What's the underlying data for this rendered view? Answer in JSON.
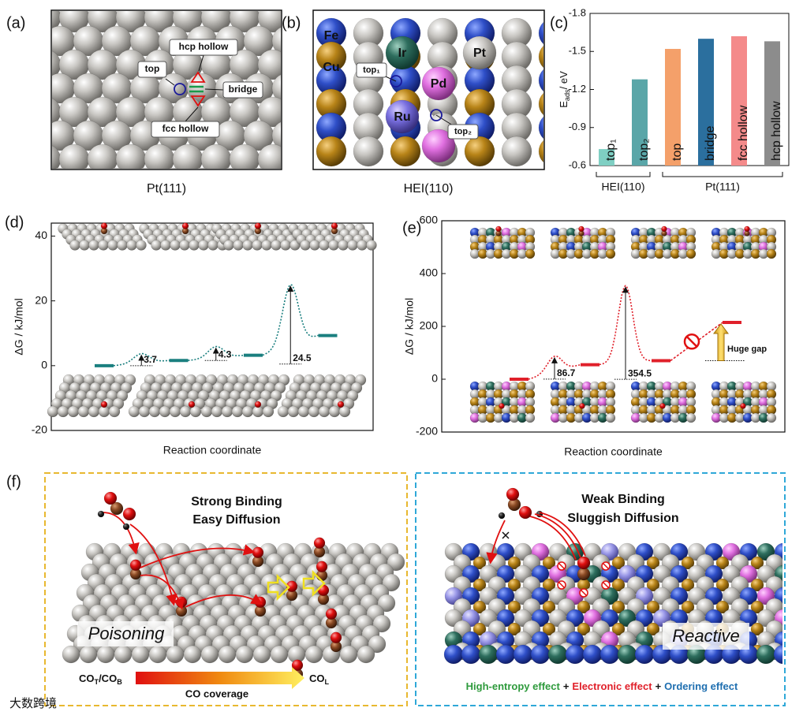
{
  "panel_labels": [
    "(a)",
    "(b)",
    "(c)",
    "(d)",
    "(e)",
    "(f)"
  ],
  "panel_a": {
    "sites": [
      "top",
      "hcp hollow",
      "bridge",
      "fcc hollow"
    ],
    "caption": "Pt(111)"
  },
  "panel_b": {
    "elements": [
      "Fe",
      "Cu",
      "Ir",
      "Pt",
      "Pd",
      "Ru"
    ],
    "sites": [
      "top₁",
      "top₂"
    ],
    "caption": "HEI(110)"
  },
  "chart_data": [
    {
      "type": "bar",
      "categories": [
        "top₁",
        "top₂",
        "top",
        "bridge",
        "fcc hollow",
        "hcp hollow"
      ],
      "values": [
        -0.73,
        -1.28,
        -1.52,
        -1.6,
        -1.62,
        -1.58
      ],
      "colors": [
        "#7fcfc3",
        "#5aa6a8",
        "#f4a06a",
        "#2b6f9e",
        "#f48a8a",
        "#8c8c8c"
      ],
      "ylim": [
        -0.6,
        -1.8
      ],
      "yticks": [
        -1.8,
        -1.5,
        -1.2,
        -0.9,
        -0.6
      ],
      "ylabel": [
        "E",
        "ads",
        "/ eV"
      ],
      "group_labels": [
        "HEI(110)",
        "Pt(111)"
      ]
    },
    {
      "type": "energy-profile",
      "levels": [
        0,
        1.6,
        3.2,
        9.3
      ],
      "peaks": [
        3.7,
        5.9,
        25
      ],
      "barriers": [
        3.7,
        4.3,
        24.5
      ],
      "color": "#1a7f7f",
      "ylim": [
        -20,
        44
      ],
      "yticks": [
        -20,
        0,
        20,
        40
      ],
      "xlabel": "Reaction coordinate",
      "ylabel": "ΔG / kJ/mol"
    },
    {
      "type": "energy-profile",
      "levels": [
        0,
        55,
        70,
        215
      ],
      "peaks": [
        87,
        354
      ],
      "barriers": [
        86.7,
        354.5
      ],
      "color": "#e0202a",
      "ylim": [
        -200,
        600
      ],
      "yticks": [
        -200,
        0,
        200,
        400,
        600
      ],
      "xlabel": "Reaction coordinate",
      "ylabel": "ΔG / kJ/mol",
      "annotation": "Huge gap"
    }
  ],
  "panel_f": {
    "left": {
      "title": [
        "Strong Binding",
        "Easy Diffusion"
      ],
      "label": "Poisoning",
      "scale_start": [
        "CO",
        "T",
        "/CO",
        "B"
      ],
      "scale_title": "CO coverage",
      "scale_end": [
        "CO",
        "L"
      ]
    },
    "right": {
      "title": [
        "Weak Binding",
        "Sluggish Diffusion"
      ],
      "label": "Reactive",
      "effects": [
        "High-entropy effect",
        "+",
        "Electronic effect",
        "+",
        "Ordering effect"
      ]
    }
  },
  "watermark": "大数跨境"
}
